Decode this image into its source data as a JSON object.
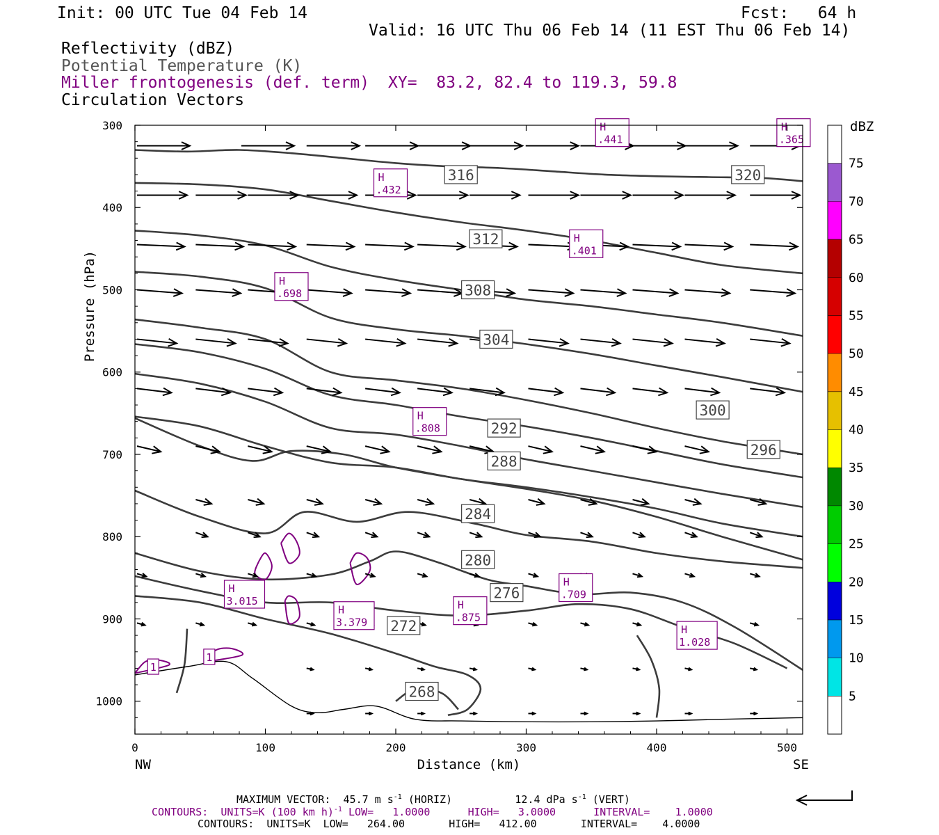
{
  "header": {
    "init": "Init: 00 UTC Tue 04 Feb 14",
    "fcst": "Fcst:   64 h",
    "valid": "Valid: 16 UTC Thu 06 Feb 14 (11 EST Thu 06 Feb 14)",
    "field1": "Reflectivity (dBZ)",
    "field2": "Potential Temperature (K)",
    "field3": "Miller frontogenesis (def. term)",
    "xy": "XY=  83.2, 82.4 to 119.3, 59.8",
    "field4": "Circulation Vectors"
  },
  "chart_data": {
    "type": "cross-section",
    "xlabel": "Distance (km)",
    "ylabel": "Pressure (hPa)",
    "xlim": [
      0,
      512
    ],
    "ylim": [
      1040,
      300
    ],
    "x_ticks": [
      0,
      100,
      200,
      300,
      400,
      500
    ],
    "y_ticks": [
      300,
      400,
      500,
      600,
      700,
      800,
      900,
      1000
    ],
    "x_end_left": "NW",
    "x_end_right": "SE",
    "theta_contours": [
      {
        "label": "320",
        "lx": 470,
        "ly": 360,
        "pts": [
          [
            0,
            330
          ],
          [
            40,
            332
          ],
          [
            80,
            330
          ],
          [
            120,
            334
          ],
          [
            160,
            340
          ],
          [
            200,
            346
          ],
          [
            240,
            350
          ],
          [
            280,
            352
          ],
          [
            320,
            356
          ],
          [
            360,
            360
          ],
          [
            400,
            362
          ],
          [
            440,
            363
          ],
          [
            480,
            364
          ],
          [
            512,
            368
          ]
        ]
      },
      {
        "label": "316",
        "lx": 250,
        "ly": 360,
        "pts": [
          [
            0,
            370
          ],
          [
            50,
            372
          ],
          [
            100,
            378
          ],
          [
            150,
            392
          ],
          [
            200,
            406
          ],
          [
            250,
            418
          ],
          [
            300,
            428
          ],
          [
            350,
            440
          ],
          [
            400,
            455
          ],
          [
            450,
            470
          ],
          [
            512,
            480
          ]
        ]
      },
      {
        "label": "312",
        "lx": 269,
        "ly": 438,
        "pts": [
          [
            0,
            428
          ],
          [
            50,
            434
          ],
          [
            100,
            446
          ],
          [
            150,
            472
          ],
          [
            200,
            488
          ],
          [
            250,
            500
          ],
          [
            300,
            512
          ],
          [
            350,
            520
          ],
          [
            400,
            530
          ],
          [
            450,
            540
          ],
          [
            512,
            556
          ]
        ]
      },
      {
        "label": "308",
        "lx": 263,
        "ly": 500,
        "pts": [
          [
            0,
            478
          ],
          [
            50,
            484
          ],
          [
            100,
            498
          ],
          [
            150,
            534
          ],
          [
            200,
            548
          ],
          [
            250,
            556
          ],
          [
            300,
            566
          ],
          [
            350,
            578
          ],
          [
            400,
            592
          ],
          [
            450,
            606
          ],
          [
            512,
            624
          ]
        ]
      },
      {
        "label": "304",
        "lx": 277,
        "ly": 560,
        "pts": [
          [
            0,
            536
          ],
          [
            50,
            546
          ],
          [
            100,
            560
          ],
          [
            150,
            600
          ],
          [
            200,
            610
          ],
          [
            250,
            620
          ],
          [
            300,
            634
          ],
          [
            350,
            650
          ],
          [
            400,
            668
          ],
          [
            450,
            684
          ],
          [
            512,
            700
          ]
        ]
      },
      {
        "label": "300",
        "lx": 443,
        "ly": 646,
        "pts": [
          [
            0,
            566
          ],
          [
            50,
            576
          ],
          [
            100,
            596
          ],
          [
            150,
            628
          ],
          [
            200,
            640
          ],
          [
            250,
            654
          ],
          [
            300,
            666
          ],
          [
            350,
            680
          ],
          [
            400,
            696
          ],
          [
            450,
            712
          ],
          [
            512,
            728
          ]
        ]
      },
      {
        "label": "296",
        "lx": 482,
        "ly": 694,
        "pts": [
          [
            0,
            602
          ],
          [
            50,
            614
          ],
          [
            100,
            636
          ],
          [
            150,
            668
          ],
          [
            200,
            676
          ],
          [
            250,
            690
          ],
          [
            300,
            706
          ],
          [
            350,
            720
          ],
          [
            400,
            734
          ],
          [
            450,
            748
          ],
          [
            512,
            764
          ]
        ]
      },
      {
        "label": "292",
        "lx": 283,
        "ly": 668,
        "pts": [
          [
            0,
            654
          ],
          [
            50,
            666
          ],
          [
            100,
            690
          ],
          [
            150,
            710
          ],
          [
            200,
            716
          ],
          [
            250,
            730
          ],
          [
            300,
            740
          ],
          [
            350,
            752
          ],
          [
            400,
            766
          ],
          [
            450,
            784
          ],
          [
            512,
            800
          ]
        ]
      },
      {
        "label": "288",
        "lx": 283,
        "ly": 708,
        "pts": [
          [
            0,
            656
          ],
          [
            50,
            690
          ],
          [
            90,
            708
          ],
          [
            120,
            696
          ],
          [
            160,
            700
          ],
          [
            200,
            716
          ],
          [
            250,
            730
          ],
          [
            300,
            742
          ],
          [
            350,
            756
          ],
          [
            400,
            776
          ],
          [
            450,
            800
          ],
          [
            512,
            828
          ]
        ]
      },
      {
        "label": "284",
        "lx": 263,
        "ly": 772,
        "pts": [
          [
            0,
            744
          ],
          [
            50,
            776
          ],
          [
            100,
            796
          ],
          [
            130,
            770
          ],
          [
            170,
            782
          ],
          [
            210,
            770
          ],
          [
            260,
            784
          ],
          [
            300,
            798
          ],
          [
            350,
            806
          ],
          [
            400,
            820
          ],
          [
            450,
            830
          ],
          [
            512,
            838
          ]
        ]
      },
      {
        "label": "280",
        "lx": 263,
        "ly": 828,
        "pts": [
          [
            0,
            820
          ],
          [
            50,
            842
          ],
          [
            100,
            852
          ],
          [
            150,
            846
          ],
          [
            180,
            830
          ],
          [
            200,
            818
          ],
          [
            230,
            830
          ],
          [
            270,
            852
          ],
          [
            300,
            860
          ],
          [
            340,
            870
          ],
          [
            380,
            868
          ],
          [
            420,
            880
          ],
          [
            460,
            910
          ],
          [
            512,
            962
          ]
        ]
      },
      {
        "label": "276",
        "lx": 285,
        "ly": 868,
        "pts": [
          [
            0,
            848
          ],
          [
            50,
            866
          ],
          [
            100,
            880
          ],
          [
            150,
            880
          ],
          [
            200,
            890
          ],
          [
            250,
            896
          ],
          [
            300,
            890
          ],
          [
            340,
            882
          ],
          [
            380,
            888
          ],
          [
            420,
            910
          ],
          [
            460,
            930
          ],
          [
            500,
            960
          ]
        ]
      },
      {
        "label": "272",
        "lx": 206,
        "ly": 908,
        "pts": [
          [
            0,
            872
          ],
          [
            50,
            880
          ],
          [
            100,
            900
          ],
          [
            150,
            918
          ],
          [
            200,
            942
          ],
          [
            230,
            958
          ],
          [
            255,
            968
          ],
          [
            265,
            985
          ],
          [
            255,
            1010
          ],
          [
            240,
            1017
          ]
        ]
      },
      {
        "label": "268",
        "lx": 220,
        "ly": 988,
        "pts": [
          [
            40,
            912
          ],
          [
            38,
            955
          ],
          [
            32,
            990
          ]
        ]
      }
    ],
    "theta_extra": [
      {
        "pts": [
          [
            200,
            1000
          ],
          [
            215,
            985
          ],
          [
            235,
            990
          ],
          [
            248,
            1010
          ]
        ]
      },
      {
        "pts": [
          [
            400,
            1020
          ],
          [
            402,
            985
          ],
          [
            396,
            950
          ],
          [
            385,
            920
          ]
        ]
      }
    ],
    "terrain_pts": [
      [
        0,
        968
      ],
      [
        40,
        958
      ],
      [
        70,
        952
      ],
      [
        90,
        972
      ],
      [
        120,
        1006
      ],
      [
        140,
        1014
      ],
      [
        160,
        1010
      ],
      [
        185,
        1006
      ],
      [
        215,
        1022
      ],
      [
        250,
        1024
      ],
      [
        300,
        1025
      ],
      [
        350,
        1025
      ],
      [
        400,
        1024
      ],
      [
        450,
        1022
      ],
      [
        512,
        1020
      ]
    ],
    "highs": [
      {
        "label": "H",
        "value": ".441",
        "x": 366,
        "y": 309
      },
      {
        "label": "H",
        "value": ".365",
        "x": 505,
        "y": 309
      },
      {
        "label": "H",
        "value": ".432",
        "x": 196,
        "y": 370
      },
      {
        "label": "H",
        "value": ".401",
        "x": 346,
        "y": 444
      },
      {
        "label": "H",
        "value": ".698",
        "x": 120,
        "y": 496
      },
      {
        "label": "H",
        "value": ".808",
        "x": 226,
        "y": 660
      },
      {
        "label": "H",
        "value": "3.015",
        "x": 84,
        "y": 870
      },
      {
        "label": "H",
        "value": "3.379",
        "x": 168,
        "y": 896
      },
      {
        "label": "H",
        "value": ".875",
        "x": 257,
        "y": 890
      },
      {
        "label": "H",
        "value": ".709",
        "x": 338,
        "y": 862
      },
      {
        "label": "H",
        "value": "1.028",
        "x": 431,
        "y": 920
      }
    ],
    "front_labels": [
      {
        "value": "1",
        "x": 14,
        "y": 958
      },
      {
        "value": "1",
        "x": 57,
        "y": 946
      }
    ],
    "vectors_rows": [
      {
        "p": 325,
        "xs": [
          0,
          80,
          130,
          175,
          215,
          255,
          298,
          340,
          380,
          420,
          470
        ],
        "u": 40,
        "w": 0
      },
      {
        "p": 385,
        "xs": [
          0,
          45,
          85,
          130,
          175,
          215,
          255,
          300,
          340,
          380,
          420,
          470
        ],
        "u": 38,
        "w": 0
      },
      {
        "p": 445,
        "xs": [
          0,
          45,
          85,
          130,
          175,
          215,
          255,
          300,
          340,
          380,
          420,
          470
        ],
        "u": 36,
        "w": 3
      },
      {
        "p": 500,
        "xs": [
          0,
          45,
          85,
          130,
          175,
          215,
          255,
          300,
          340,
          380,
          420,
          470
        ],
        "u": 34,
        "w": 5
      },
      {
        "p": 560,
        "xs": [
          0,
          45,
          85,
          130,
          175,
          215,
          255,
          300,
          340,
          380,
          420,
          470
        ],
        "u": 30,
        "w": 6
      },
      {
        "p": 620,
        "xs": [
          0,
          45,
          85,
          130,
          175,
          215,
          255,
          300,
          340,
          380,
          420,
          470
        ],
        "u": 26,
        "w": 6
      },
      {
        "p": 690,
        "xs": [
          0,
          45,
          85,
          130,
          175,
          215,
          255,
          300,
          340,
          380,
          420,
          470
        ],
        "u": 18,
        "w": 8
      },
      {
        "p": 755,
        "xs": [
          45,
          85,
          130,
          175,
          215,
          255,
          300,
          340,
          380,
          420,
          470
        ],
        "u": 12,
        "w": 6
      },
      {
        "p": 795,
        "xs": [
          45,
          85,
          130,
          175,
          215,
          255,
          300,
          340,
          380,
          420,
          470
        ],
        "u": 9,
        "w": 6
      },
      {
        "p": 845,
        "xs": [
          0,
          45,
          85,
          130,
          175,
          215,
          255,
          300,
          340,
          380,
          420,
          470
        ],
        "u": 7,
        "w": 4
      },
      {
        "p": 905,
        "xs": [
          0,
          45,
          85,
          130,
          175,
          215,
          255,
          300,
          340,
          380,
          420,
          470
        ],
        "u": 6,
        "w": 3
      },
      {
        "p": 960,
        "xs": [
          130,
          175,
          215,
          255,
          300,
          340,
          380,
          420,
          470
        ],
        "u": 5,
        "w": 2
      },
      {
        "p": 1015,
        "xs": [
          130,
          175,
          215,
          255,
          300,
          340,
          380,
          420,
          470
        ],
        "u": 5,
        "w": 0
      }
    ],
    "colorbar": {
      "title": "dBZ",
      "labels": [
        "5",
        "10",
        "15",
        "20",
        "25",
        "30",
        "35",
        "40",
        "45",
        "50",
        "55",
        "60",
        "65",
        "70",
        "75"
      ],
      "colors": [
        "#ffffff",
        "#00e5e5",
        "#0099ee",
        "#0000dd",
        "#00ff00",
        "#00cc00",
        "#008800",
        "#ffff00",
        "#e6c000",
        "#ff8c00",
        "#ff0000",
        "#d60000",
        "#b40000",
        "#ff00ff",
        "#9b59d0",
        "#ffffff"
      ]
    }
  },
  "footer": {
    "max_vector_a": "MAXIMUM VECTOR:  45.7 m s",
    "max_vector_b": "(HORIZ)",
    "max_vector_c": "12.4 dPa s",
    "max_vector_d": "(VERT)",
    "exp": "-1",
    "contours1_a": "CONTOURS:  UNITS=K (100 km h)",
    "contours1_b": " LOW=   1.0000      HIGH=   3.0000      INTERVAL=    1.0000",
    "contours2": "CONTOURS:  UNITS=K  LOW=   264.00       HIGH=   412.00       INTERVAL=    4.0000"
  }
}
